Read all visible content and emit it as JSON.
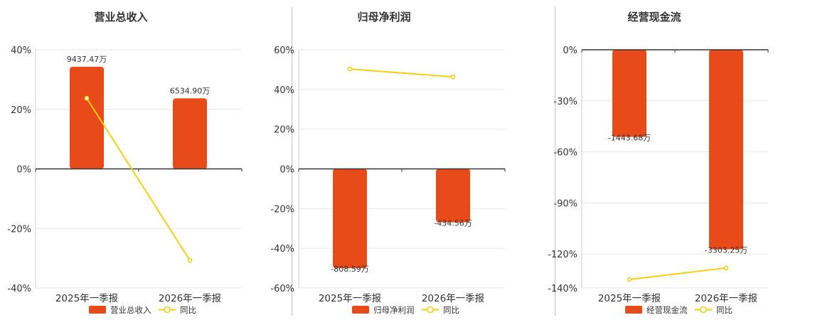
{
  "colors": {
    "bar": "#e84a1a",
    "line": "#f5cf14",
    "axis": "#333333",
    "grid": "#e6e6e6",
    "text": "#333333"
  },
  "chart_data": [
    {
      "type": "bar",
      "title": "营业总收入",
      "categories": [
        "2025年一季报",
        "2026年一季报"
      ],
      "ylim": [
        -40,
        40
      ],
      "yticks": [
        40,
        20,
        0,
        -20,
        -40
      ],
      "ytick_labels": [
        "40%",
        "20%",
        "0%",
        "-20%",
        "-40%"
      ],
      "grid": true,
      "legend_position": "bottom-center",
      "series": [
        {
          "name": "营业总收入",
          "kind": "bar",
          "bar_heights_pct": [
            34.3,
            23.7
          ],
          "data_labels": [
            "9437.47万",
            "6534.90万"
          ]
        },
        {
          "name": "同比",
          "kind": "line",
          "values": [
            23.7,
            -30.7
          ]
        }
      ]
    },
    {
      "type": "bar",
      "title": "归母净利润",
      "categories": [
        "2025年一季报",
        "2026年一季报"
      ],
      "ylim": [
        -60,
        60
      ],
      "yticks": [
        60,
        40,
        20,
        0,
        -20,
        -40,
        -60
      ],
      "ytick_labels": [
        "60%",
        "40%",
        "20%",
        "0%",
        "-20%",
        "-40%",
        "-60%"
      ],
      "grid": true,
      "legend_position": "bottom-center",
      "series": [
        {
          "name": "归母净利润",
          "kind": "bar",
          "bar_heights_pct": [
            -50.0,
            -26.9
          ],
          "data_labels": [
            "-808.59万",
            "-434.56万"
          ]
        },
        {
          "name": "同比",
          "kind": "line",
          "values": [
            50.3,
            46.3
          ]
        }
      ]
    },
    {
      "type": "bar",
      "title": "经营现金流",
      "categories": [
        "2025年一季报",
        "2026年一季报"
      ],
      "ylim": [
        -140,
        0
      ],
      "yticks": [
        0,
        -30,
        -60,
        -90,
        -120,
        -140
      ],
      "ytick_labels": [
        "0%",
        "-30%",
        "-60%",
        "-90%",
        "-120%",
        "-140%"
      ],
      "grid": true,
      "legend_position": "bottom-center",
      "series": [
        {
          "name": "经营现金流",
          "kind": "bar",
          "bar_heights_pct": [
            -51.2,
            -117.3
          ],
          "data_labels": [
            "-1443.68万",
            "-3303.25万"
          ]
        },
        {
          "name": "同比",
          "kind": "line",
          "values": [
            -135.0,
            -128.2
          ]
        }
      ]
    }
  ]
}
